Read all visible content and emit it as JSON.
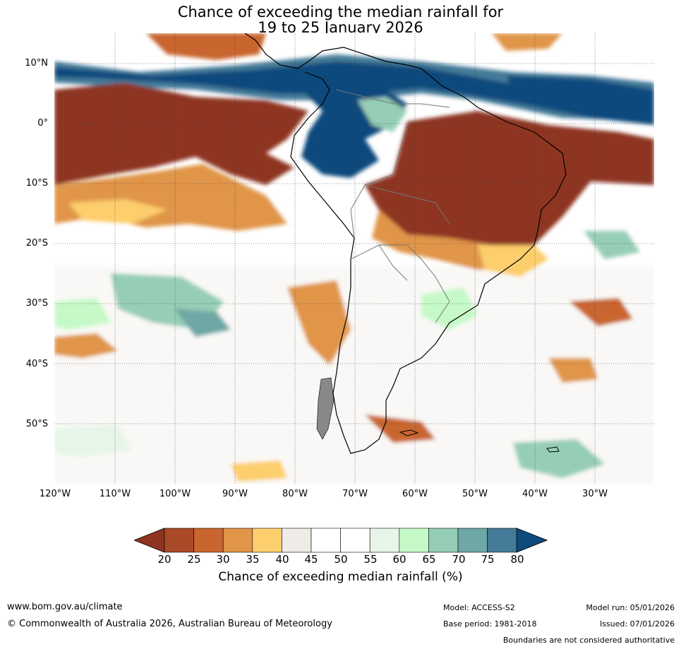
{
  "title": {
    "line1": "Chance of exceeding the median rainfall for",
    "line2": "19 to 25 January 2026"
  },
  "map": {
    "region": "South America",
    "lat_labels": [
      "10°N",
      "0°",
      "10°S",
      "20°S",
      "30°S",
      "40°S",
      "50°S"
    ],
    "lon_labels": [
      "120°W",
      "110°W",
      "100°W",
      "90°W",
      "80°W",
      "70°W",
      "60°W",
      "50°W",
      "40°W",
      "30°W"
    ]
  },
  "colorbar": {
    "title": "Chance of exceeding median rainfall (%)",
    "ticks": [
      "20",
      "25",
      "30",
      "35",
      "40",
      "45",
      "50",
      "55",
      "60",
      "65",
      "70",
      "75",
      "80"
    ],
    "colors": [
      "#8e3420",
      "#ab4a28",
      "#c9652f",
      "#e09548",
      "#fdce6c",
      "#efebe7",
      "#ffffff",
      "#ffffff",
      "#e6f5e8",
      "#c6f9c8",
      "#96cdb6",
      "#6ea7a5",
      "#447b99",
      "#0f4a7d"
    ]
  },
  "footer": {
    "website": "www.bom.gov.au/climate",
    "copyright": "© Commonwealth of Australia 2026, Australian Bureau of Meteorology",
    "model": "Model: ACCESS-S2",
    "base_period": "Base period: 1981-2018",
    "model_run": "Model run: 05/01/2026",
    "issued": "Issued: 07/01/2026",
    "disclaimer": "Boundaries are not considered authoritative"
  }
}
